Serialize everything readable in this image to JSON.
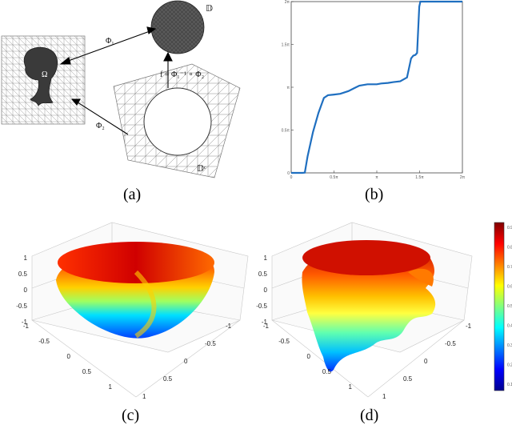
{
  "captions": {
    "a": "(a)",
    "b": "(b)",
    "c": "(c)",
    "d": "(d)"
  },
  "panel_a": {
    "labels": {
      "disk": "𝔻",
      "phi1": "Φ₁",
      "phi2": "Φ₂",
      "omega": "Ω",
      "f_eq": "f = Φ₁⁻¹ ∘ Φ₂",
      "disk_c": "𝔻ᶜ"
    }
  },
  "panel_b": {
    "chart_data": {
      "type": "line",
      "title": "",
      "xlabel": "",
      "ylabel": "",
      "xlim": [
        0,
        6.283
      ],
      "ylim": [
        0,
        6.283
      ],
      "x_ticks": [
        "0",
        "0.5π",
        "π",
        "1.5π",
        "2π"
      ],
      "y_ticks": [
        "0",
        "0.5π",
        "π",
        "1.5π",
        "2π"
      ],
      "series": [
        {
          "color": "#1f6fc0",
          "x": [
            0,
            0.3,
            0.42,
            0.5,
            0.6,
            0.8,
            1.0,
            1.2,
            1.35,
            1.55,
            1.8,
            2.1,
            2.3,
            2.5,
            2.8,
            3.14,
            3.3,
            3.55,
            3.75,
            4.0,
            4.25,
            4.4,
            4.48,
            4.56,
            4.62,
            4.7,
            4.74,
            4.8,
            5.0,
            6.283
          ],
          "y": [
            0,
            0,
            0,
            0.01,
            0.6,
            1.5,
            2.2,
            2.75,
            2.85,
            2.87,
            2.9,
            3.0,
            3.1,
            3.2,
            3.25,
            3.25,
            3.28,
            3.3,
            3.33,
            3.36,
            3.5,
            4.2,
            4.3,
            4.33,
            4.4,
            6.1,
            6.283,
            6.283,
            6.283,
            6.283
          ]
        }
      ]
    }
  },
  "panel_c": {
    "z_ticks": [
      "1",
      "0.5",
      "0",
      "-0.5",
      "-1"
    ],
    "x_ticks": [
      "-1",
      "-0.5",
      "0",
      "0.5",
      "1"
    ],
    "y_ticks": [
      "1",
      "0.5",
      "0",
      "-0.5",
      "-1"
    ]
  },
  "panel_d": {
    "z_ticks": [
      "1",
      "0.5",
      "0",
      "-0.5",
      "-1"
    ],
    "x_ticks": [
      "-1",
      "-0.5",
      "0",
      "0.5",
      "1"
    ],
    "y_ticks": [
      "1",
      "0.5",
      "0",
      "-0.5",
      "-1"
    ]
  },
  "colorbar": {
    "ticks": [
      "0.9",
      "0.8",
      "0.7",
      "0.6",
      "0.5",
      "0.4",
      "0.3",
      "0.2",
      "0.1"
    ],
    "colors": [
      "#00008f",
      "#0000ff",
      "#0080ff",
      "#00ffff",
      "#80ff80",
      "#ffff00",
      "#ff8000",
      "#ff0000",
      "#800000"
    ]
  }
}
